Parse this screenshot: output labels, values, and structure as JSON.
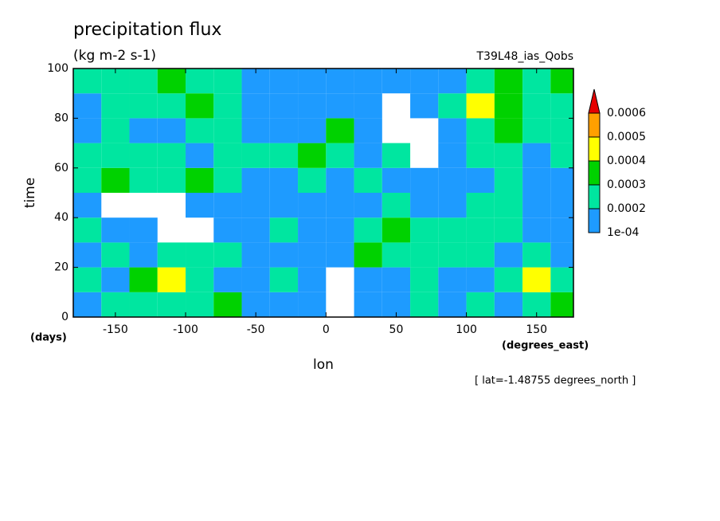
{
  "chart_data": {
    "type": "heatmap",
    "title": "precipitation flux",
    "subtitle": "(kg m-2 s-1)",
    "annotation": "T39L48_ias_Qobs",
    "xlabel": "lon",
    "xunits": "(degrees_east)",
    "ylabel": "time",
    "yunits": "(days)",
    "footnote": "[ lat=-1.48755 degrees_north ]",
    "xlim": [
      -180,
      176.25
    ],
    "ylim": [
      0,
      100
    ],
    "xticks": [
      -150,
      -100,
      -50,
      0,
      50,
      100,
      150
    ],
    "yticks": [
      0,
      20,
      40,
      60,
      80,
      100
    ],
    "x": [
      -170,
      -150,
      -130,
      -110,
      -90,
      -70,
      -50,
      -30,
      -10,
      10,
      30,
      50,
      70,
      90,
      110,
      130,
      150,
      170
    ],
    "y": [
      5,
      15,
      25,
      35,
      45,
      55,
      65,
      75,
      85,
      95
    ],
    "z": [
      [
        0.00015,
        0.0002,
        0.00025,
        0.0002,
        0.00025,
        0.0003,
        0.0001,
        0.00015,
        0.00012,
        5e-05,
        0.00015,
        0.00015,
        0.0002,
        0.00015,
        0.0002,
        0.00015,
        0.00025,
        0.0003
      ],
      [
        0.0002,
        0.00015,
        0.0003,
        0.0004,
        0.0002,
        0.00015,
        0.00015,
        0.00025,
        0.00015,
        5e-05,
        0.0001,
        0.00015,
        0.0002,
        0.00015,
        0.00015,
        0.0002,
        0.0004,
        0.0002
      ],
      [
        0.00015,
        0.0002,
        0.00015,
        0.0002,
        0.00025,
        0.0002,
        0.00015,
        0.00012,
        0.00015,
        0.00015,
        0.0003,
        0.0002,
        0.0002,
        0.00025,
        0.0002,
        0.00015,
        0.0002,
        0.00015
      ],
      [
        0.00025,
        0.00015,
        0.00012,
        8e-05,
        5e-05,
        0.00015,
        0.00015,
        0.0002,
        0.00015,
        0.00015,
        0.0002,
        0.00035,
        0.0002,
        0.00025,
        0.0002,
        0.00025,
        0.00015,
        0.00015
      ],
      [
        0.00015,
        8e-05,
        5e-05,
        8e-05,
        0.00015,
        0.00012,
        0.00015,
        0.00015,
        0.00015,
        0.00015,
        0.00015,
        0.0002,
        0.00015,
        0.00015,
        0.0002,
        0.0002,
        0.00015,
        0.00015
      ],
      [
        0.0002,
        0.0003,
        0.0002,
        0.00025,
        0.00035,
        0.0002,
        0.00015,
        0.00015,
        0.0002,
        0.00015,
        0.0002,
        0.00015,
        0.00015,
        0.0001,
        0.00015,
        0.0002,
        0.00015,
        0.00015
      ],
      [
        0.0002,
        0.00025,
        0.00025,
        0.0002,
        0.00015,
        0.0002,
        0.0002,
        0.0002,
        0.0003,
        0.0002,
        0.00015,
        0.0002,
        5e-05,
        0.00012,
        0.0002,
        0.0002,
        0.00015,
        0.0002
      ],
      [
        0.00015,
        0.0002,
        0.00015,
        0.00015,
        0.00025,
        0.0002,
        0.00012,
        0.00015,
        0.00015,
        0.0003,
        0.00015,
        8e-05,
        5e-05,
        0.00015,
        0.0002,
        0.0003,
        0.00025,
        0.00025
      ],
      [
        0.00015,
        0.0002,
        0.0002,
        0.00025,
        0.00035,
        0.0002,
        0.00015,
        0.00012,
        0.00015,
        0.00015,
        0.00012,
        8e-05,
        0.00015,
        0.0002,
        0.00045,
        0.0003,
        0.0002,
        0.0002
      ],
      [
        0.0002,
        0.00025,
        0.0002,
        0.0003,
        0.00025,
        0.0002,
        0.00015,
        0.00015,
        0.00012,
        0.00015,
        0.00015,
        0.00015,
        0.00015,
        0.0001,
        0.0002,
        0.0003,
        0.00025,
        0.0003
      ]
    ],
    "levels": [
      0.0001,
      0.0002,
      0.0003,
      0.0004,
      0.0005,
      0.0006
    ],
    "level_labels": [
      "1e-04",
      "0.0002",
      "0.0003",
      "0.0004",
      "0.0005",
      "0.0006"
    ],
    "colors": [
      "#1e9bff",
      "#00e6a0",
      "#00d200",
      "#ffff00",
      "#ffa000",
      "#e60000"
    ]
  }
}
